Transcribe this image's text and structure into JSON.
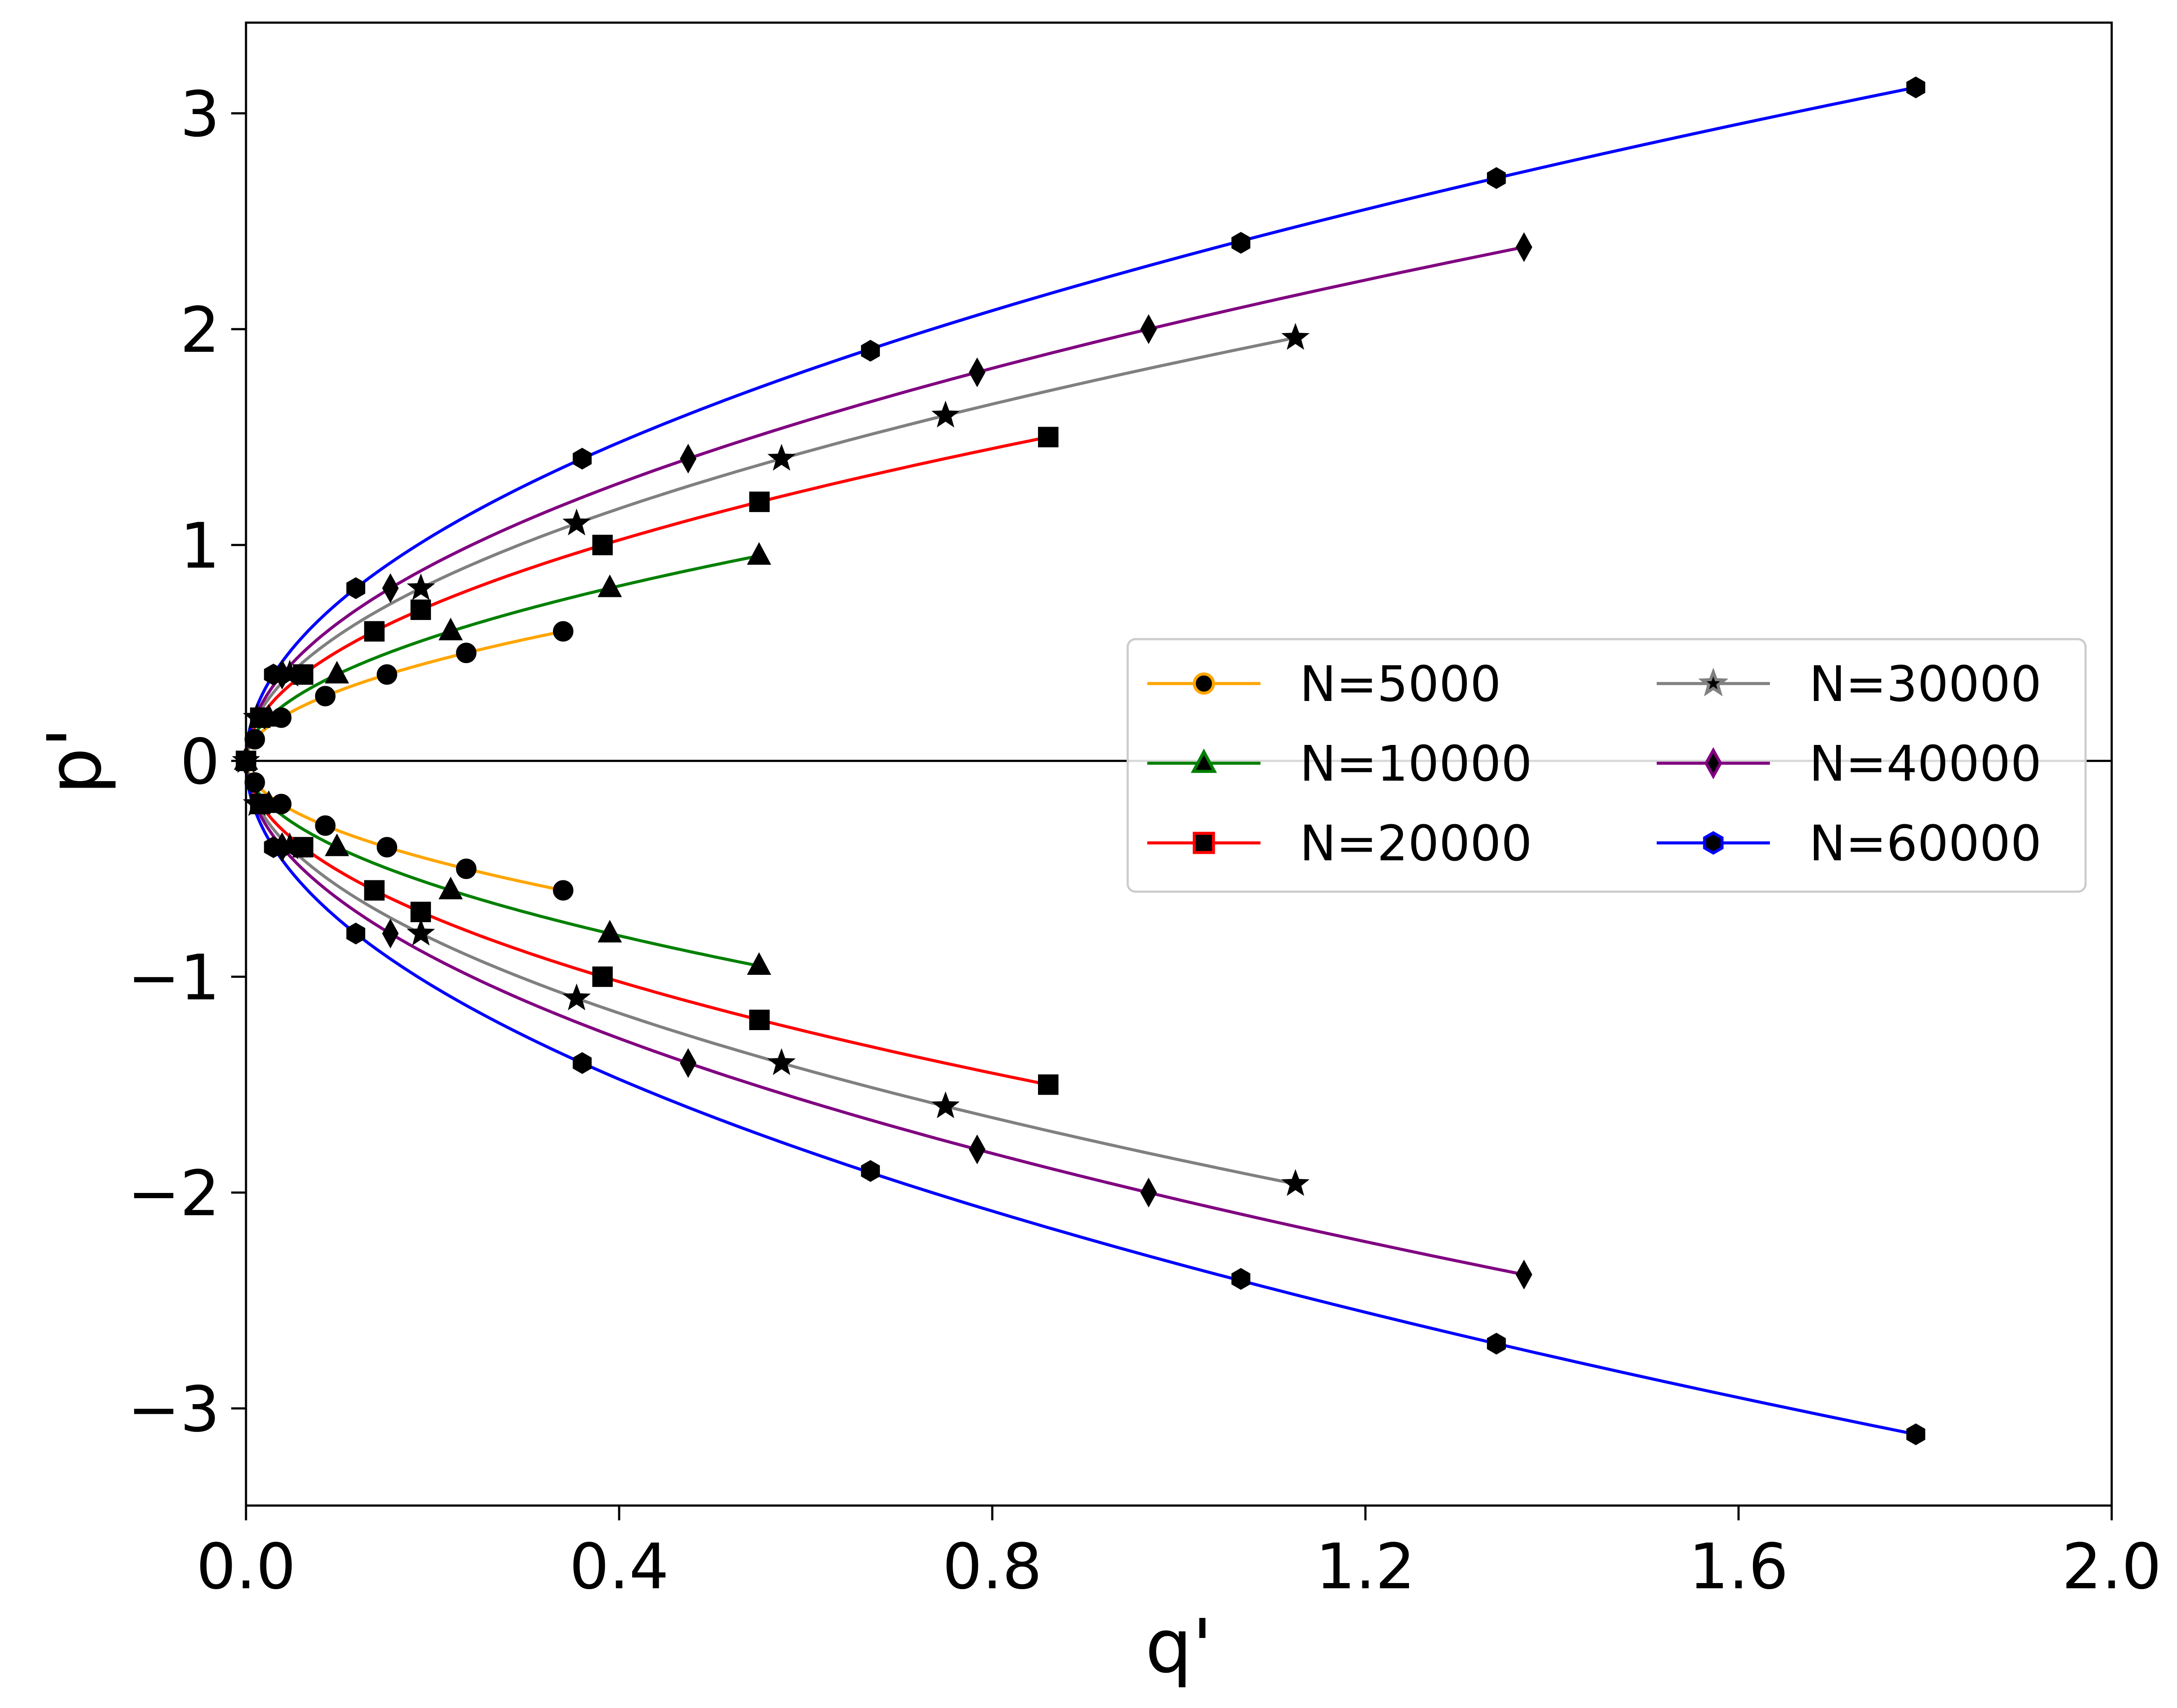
{
  "chart_data": {
    "type": "line",
    "title": "",
    "xlabel": "q'",
    "ylabel": "p'",
    "xlim": [
      0.0,
      2.0
    ],
    "ylim": [
      -3.45,
      3.42
    ],
    "xticks": [
      0.0,
      0.4,
      0.8,
      1.2,
      1.6,
      2.0
    ],
    "xtick_labels": [
      "0.0",
      "0.4",
      "0.8",
      "1.2",
      "1.6",
      "2.0"
    ],
    "yticks": [
      3,
      2,
      1,
      0,
      -1,
      -2,
      -3
    ],
    "ytick_labels": [
      "3",
      "2",
      "1",
      "0",
      "−1",
      "−2",
      "−3"
    ],
    "grid": false,
    "reference_line_y": 0,
    "legend": {
      "placement": "center-right",
      "columns": 2
    },
    "series": [
      {
        "name": "N=5000",
        "color": "#ffa500",
        "marker": "circle",
        "marker_fill": "#000000",
        "marker_edge": "#ffa500",
        "p_max": 0.6,
        "q_max": 0.34,
        "points": [
          {
            "q": 0.0,
            "p": 0.0
          },
          {
            "q": 0.0094,
            "p": 0.1
          },
          {
            "q": 0.0378,
            "p": 0.2
          },
          {
            "q": 0.085,
            "p": 0.3
          },
          {
            "q": 0.1511,
            "p": 0.4
          },
          {
            "q": 0.2361,
            "p": 0.5
          },
          {
            "q": 0.34,
            "p": 0.6
          }
        ]
      },
      {
        "name": "N=10000",
        "color": "#008000",
        "marker": "triangle",
        "marker_fill": "#000000",
        "marker_edge": "#008000",
        "p_max": 0.95,
        "q_max": 0.55,
        "points": [
          {
            "q": 0.0,
            "p": 0.0
          },
          {
            "q": 0.0244,
            "p": 0.2
          },
          {
            "q": 0.0975,
            "p": 0.4
          },
          {
            "q": 0.2194,
            "p": 0.6
          },
          {
            "q": 0.39,
            "p": 0.8
          },
          {
            "q": 0.55,
            "p": 0.95
          }
        ]
      },
      {
        "name": "N=20000",
        "color": "#ff0000",
        "marker": "square",
        "marker_fill": "#000000",
        "marker_edge": "#ff0000",
        "p_max": 1.5,
        "q_max": 0.86,
        "points": [
          {
            "q": 0.0,
            "p": 0.0
          },
          {
            "q": 0.0153,
            "p": 0.2
          },
          {
            "q": 0.0612,
            "p": 0.4
          },
          {
            "q": 0.1376,
            "p": 0.6
          },
          {
            "q": 0.1873,
            "p": 0.7
          },
          {
            "q": 0.3822,
            "p": 1.0
          },
          {
            "q": 0.5504,
            "p": 1.2
          },
          {
            "q": 0.86,
            "p": 1.5
          }
        ]
      },
      {
        "name": "N=30000",
        "color": "#808080",
        "marker": "star",
        "marker_fill": "#000000",
        "marker_edge": "#808080",
        "p_max": 1.96,
        "q_max": 1.125,
        "points": [
          {
            "q": 0.0,
            "p": 0.0
          },
          {
            "q": 0.0117,
            "p": 0.2
          },
          {
            "q": 0.0469,
            "p": 0.4
          },
          {
            "q": 0.1875,
            "p": 0.8
          },
          {
            "q": 0.3544,
            "p": 1.1
          },
          {
            "q": 0.5741,
            "p": 1.4
          },
          {
            "q": 0.7499,
            "p": 1.6
          },
          {
            "q": 1.125,
            "p": 1.96
          }
        ]
      },
      {
        "name": "N=40000",
        "color": "#800080",
        "marker": "diamond",
        "marker_fill": "#000000",
        "marker_edge": "#800080",
        "p_max": 2.38,
        "q_max": 1.37,
        "points": [
          {
            "q": 0.0,
            "p": 0.0
          },
          {
            "q": 0.0387,
            "p": 0.4
          },
          {
            "q": 0.1548,
            "p": 0.8
          },
          {
            "q": 0.474,
            "p": 1.4
          },
          {
            "q": 0.7838,
            "p": 1.8
          },
          {
            "q": 0.9676,
            "p": 2.0
          },
          {
            "q": 1.37,
            "p": 2.38
          }
        ]
      },
      {
        "name": "N=60000",
        "color": "#0000ff",
        "marker": "hexagon",
        "marker_fill": "#000000",
        "marker_edge": "#0000ff",
        "p_max": 3.12,
        "q_max": 1.79,
        "points": [
          {
            "q": 0.0,
            "p": 0.0
          },
          {
            "q": 0.0294,
            "p": 0.4
          },
          {
            "q": 0.1177,
            "p": 0.8
          },
          {
            "q": 0.3604,
            "p": 1.4
          },
          {
            "q": 0.6694,
            "p": 1.9
          },
          {
            "q": 1.0665,
            "p": 2.4
          },
          {
            "q": 1.3404,
            "p": 2.7
          },
          {
            "q": 1.79,
            "p": 3.12
          }
        ]
      }
    ]
  }
}
